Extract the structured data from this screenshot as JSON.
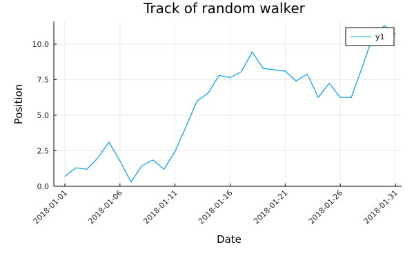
{
  "chart_data": {
    "type": "line",
    "title": "Track of random walker",
    "xlabel": "Date",
    "ylabel": "Position",
    "x_tick_labels": [
      "2018-01-01",
      "2018-01-06",
      "2018-01-11",
      "2018-01-16",
      "2018-01-21",
      "2018-01-26",
      "2018-01-31"
    ],
    "y_tick_labels": [
      "0.0",
      "2.5",
      "5.0",
      "7.5",
      "10.0"
    ],
    "y_ticks": [
      0,
      2.5,
      5,
      7.5,
      10
    ],
    "ylim": [
      0,
      11.6
    ],
    "xlim": [
      "2018-01-01",
      "2018-01-31"
    ],
    "grid": true,
    "legend_position": "top-right",
    "series": [
      {
        "name": "y1",
        "color": "#009af9",
        "x": [
          "2018-01-01",
          "2018-01-02",
          "2018-01-03",
          "2018-01-04",
          "2018-01-05",
          "2018-01-06",
          "2018-01-07",
          "2018-01-08",
          "2018-01-09",
          "2018-01-10",
          "2018-01-11",
          "2018-01-12",
          "2018-01-13",
          "2018-01-14",
          "2018-01-15",
          "2018-01-16",
          "2018-01-17",
          "2018-01-18",
          "2018-01-19",
          "2018-01-20",
          "2018-01-21",
          "2018-01-22",
          "2018-01-23",
          "2018-01-24",
          "2018-01-25",
          "2018-01-26",
          "2018-01-27",
          "2018-01-28",
          "2018-01-29",
          "2018-01-30",
          "2018-01-31"
        ],
        "y": [
          0.7,
          1.3,
          1.2,
          2.0,
          3.1,
          1.8,
          0.3,
          1.45,
          1.85,
          1.2,
          2.45,
          4.2,
          6.0,
          6.55,
          7.8,
          7.65,
          8.05,
          9.45,
          8.3,
          8.2,
          8.1,
          7.4,
          7.9,
          6.25,
          7.25,
          6.25,
          6.25,
          8.4,
          10.65,
          11.3,
          10.7
        ]
      }
    ]
  }
}
